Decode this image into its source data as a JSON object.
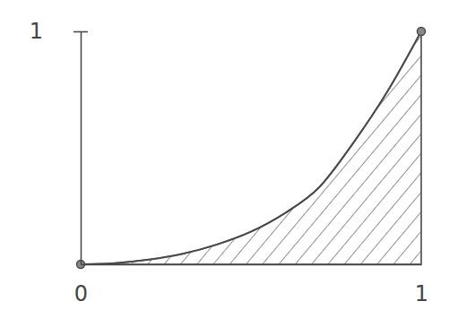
{
  "chart_data": {
    "type": "area",
    "series": [
      {
        "type": "area",
        "color": "#4a4a4a",
        "x": [
          0,
          0.1,
          0.2,
          0.3,
          0.4,
          0.5,
          0.6,
          0.7,
          0.8,
          0.9,
          1
        ],
        "values": [
          0,
          0.005,
          0.02,
          0.045,
          0.085,
          0.14,
          0.22,
          0.33,
          0.52,
          0.74,
          1
        ]
      },
      {
        "type": "scatter",
        "color": "#4a4a4a",
        "marker": "circle",
        "x": [
          0,
          1
        ],
        "values": [
          0,
          1
        ]
      }
    ],
    "xlim": [
      0,
      1
    ],
    "xticks": [
      0,
      1
    ],
    "ylim": [
      0,
      1
    ],
    "yticks": [
      1
    ],
    "grid": false
  }
}
